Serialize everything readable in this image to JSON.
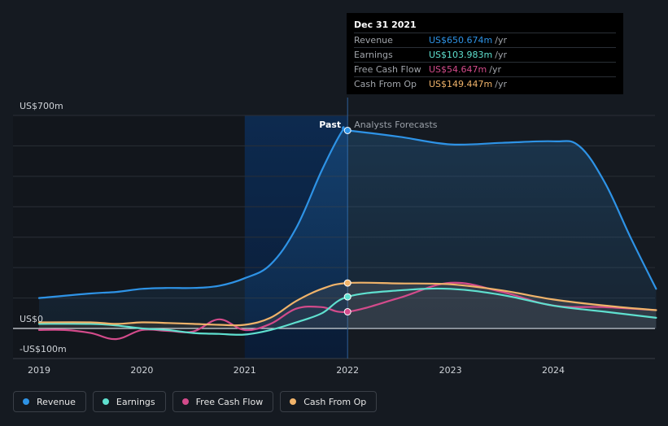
{
  "colors": {
    "revenue": "#2e93e6",
    "earnings": "#5fe0cf",
    "fcf": "#d34b8b",
    "cfo": "#f0b36a",
    "grid": "#2a2f36",
    "axis_text": "#cfd3d8",
    "past_band": "#0c2544"
  },
  "tooltip": {
    "date": "Dec 31 2021",
    "rows": [
      {
        "label": "Revenue",
        "value": "US$650.674m",
        "unit": "/yr",
        "color": "#2e93e6"
      },
      {
        "label": "Earnings",
        "value": "US$103.983m",
        "unit": "/yr",
        "color": "#5fe0cf"
      },
      {
        "label": "Free Cash Flow",
        "value": "US$54.647m",
        "unit": "/yr",
        "color": "#d34b8b"
      },
      {
        "label": "Cash From Op",
        "value": "US$149.447m",
        "unit": "/yr",
        "color": "#f0b36a"
      }
    ]
  },
  "legend": [
    {
      "label": "Revenue",
      "color": "#2e93e6"
    },
    {
      "label": "Earnings",
      "color": "#5fe0cf"
    },
    {
      "label": "Free Cash Flow",
      "color": "#d34b8b"
    },
    {
      "label": "Cash From Op",
      "color": "#f0b36a"
    }
  ],
  "chart_data": {
    "type": "line",
    "title": "",
    "xlabel": "",
    "ylabel": "",
    "x_ticks": [
      "2019",
      "2020",
      "2021",
      "2022",
      "2023",
      "2024"
    ],
    "y_tick_labels": [
      "US$700m",
      "US$0",
      "-US$100m"
    ],
    "ylim": [
      -100,
      700
    ],
    "xlim": [
      2019.0,
      2025.0
    ],
    "past_label": "Past",
    "forecast_label": "Analysts Forecasts",
    "divider_x": 2022.0,
    "highlight_range": [
      2021.0,
      2022.0
    ],
    "series": [
      {
        "name": "Revenue",
        "key": "revenue",
        "values": [
          [
            2019.0,
            100
          ],
          [
            2019.5,
            115
          ],
          [
            2019.75,
            120
          ],
          [
            2020.0,
            130
          ],
          [
            2020.25,
            133
          ],
          [
            2020.5,
            133
          ],
          [
            2020.75,
            140
          ],
          [
            2021.0,
            165
          ],
          [
            2021.25,
            210
          ],
          [
            2021.5,
            330
          ],
          [
            2021.75,
            520
          ],
          [
            2021.95,
            650
          ],
          [
            2022.0,
            650.674
          ],
          [
            2022.5,
            630
          ],
          [
            2023.0,
            605
          ],
          [
            2023.5,
            610
          ],
          [
            2024.0,
            615
          ],
          [
            2024.25,
            600
          ],
          [
            2024.5,
            480
          ],
          [
            2024.75,
            300
          ],
          [
            2025.0,
            130
          ]
        ]
      },
      {
        "name": "Earnings",
        "key": "earnings",
        "values": [
          [
            2019.0,
            15
          ],
          [
            2019.5,
            15
          ],
          [
            2019.75,
            10
          ],
          [
            2020.0,
            0
          ],
          [
            2020.25,
            -5
          ],
          [
            2020.5,
            -15
          ],
          [
            2020.75,
            -18
          ],
          [
            2021.0,
            -20
          ],
          [
            2021.25,
            -5
          ],
          [
            2021.5,
            20
          ],
          [
            2021.75,
            50
          ],
          [
            2022.0,
            103.983
          ],
          [
            2022.5,
            125
          ],
          [
            2023.0,
            130
          ],
          [
            2023.5,
            110
          ],
          [
            2024.0,
            75
          ],
          [
            2024.5,
            55
          ],
          [
            2025.0,
            35
          ]
        ]
      },
      {
        "name": "Free Cash Flow",
        "key": "fcf",
        "values": [
          [
            2019.0,
            -5
          ],
          [
            2019.25,
            -5
          ],
          [
            2019.5,
            -15
          ],
          [
            2019.75,
            -35
          ],
          [
            2020.0,
            -5
          ],
          [
            2020.25,
            -8
          ],
          [
            2020.5,
            -10
          ],
          [
            2020.75,
            30
          ],
          [
            2021.0,
            -5
          ],
          [
            2021.25,
            15
          ],
          [
            2021.5,
            65
          ],
          [
            2021.75,
            70
          ],
          [
            2022.0,
            54.647
          ],
          [
            2022.5,
            100
          ],
          [
            2023.0,
            150
          ],
          [
            2023.5,
            120
          ],
          [
            2024.0,
            75
          ],
          [
            2024.5,
            70
          ],
          [
            2025.0,
            60
          ]
        ]
      },
      {
        "name": "Cash From Op",
        "key": "cfo",
        "values": [
          [
            2019.0,
            20
          ],
          [
            2019.5,
            20
          ],
          [
            2019.75,
            15
          ],
          [
            2020.0,
            20
          ],
          [
            2020.25,
            18
          ],
          [
            2020.5,
            15
          ],
          [
            2020.75,
            12
          ],
          [
            2021.0,
            12
          ],
          [
            2021.25,
            35
          ],
          [
            2021.5,
            90
          ],
          [
            2021.75,
            130
          ],
          [
            2022.0,
            149.447
          ],
          [
            2022.5,
            148
          ],
          [
            2023.0,
            145
          ],
          [
            2023.5,
            125
          ],
          [
            2024.0,
            95
          ],
          [
            2024.5,
            75
          ],
          [
            2025.0,
            60
          ]
        ]
      }
    ]
  }
}
